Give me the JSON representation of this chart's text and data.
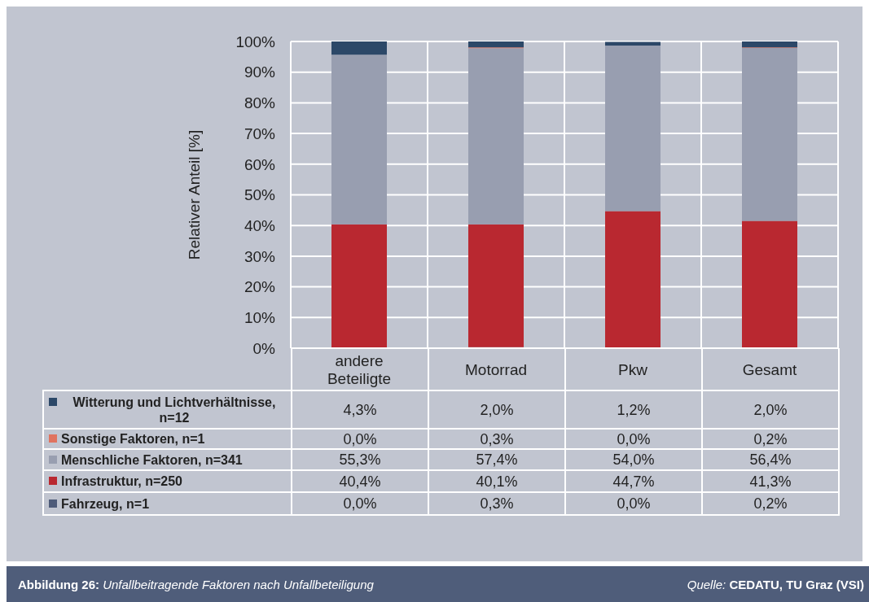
{
  "chart_data": {
    "type": "bar",
    "stacked": true,
    "title": "Abbildung 26: Unfallbeitragende Faktoren nach Unfallbeteiligung",
    "ylabel": "Relativer Anteil [%]",
    "categories": [
      "andere Beteiligte",
      "Motorrad",
      "Pkw",
      "Gesamt"
    ],
    "series": [
      {
        "name": "Fahrzeug, n=1",
        "color": "#4e5b79",
        "values": [
          0.0,
          0.3,
          0.0,
          0.2
        ],
        "value_labels": [
          "0,0%",
          "0,3%",
          "0,0%",
          "0,2%"
        ]
      },
      {
        "name": "Infrastruktur, n=250",
        "color": "#b92830",
        "values": [
          40.4,
          40.1,
          44.7,
          41.3
        ],
        "value_labels": [
          "40,4%",
          "40,1%",
          "44,7%",
          "41,3%"
        ]
      },
      {
        "name": "Menschliche Faktoren, n=341",
        "color": "#989eb0",
        "values": [
          55.3,
          57.4,
          54.0,
          56.4
        ],
        "value_labels": [
          "55,3%",
          "57,4%",
          "54,0%",
          "56,4%"
        ]
      },
      {
        "name": "Sonstige Faktoren, n=1",
        "color": "#e0735f",
        "values": [
          0.0,
          0.3,
          0.0,
          0.2
        ],
        "value_labels": [
          "0,0%",
          "0,3%",
          "0,0%",
          "0,2%"
        ]
      },
      {
        "name": "Witterung und Lichtverhältnisse, n=12",
        "color": "#2c4868",
        "values": [
          4.3,
          2.0,
          1.2,
          2.0
        ],
        "value_labels": [
          "4,3%",
          "2,0%",
          "1,2%",
          "2,0%"
        ]
      }
    ],
    "ylim": [
      0,
      100
    ],
    "yticks": [
      {
        "value": 0,
        "label": "0%"
      },
      {
        "value": 10,
        "label": "10%"
      },
      {
        "value": 20,
        "label": "20%"
      },
      {
        "value": 30,
        "label": "30%"
      },
      {
        "value": 40,
        "label": "40%"
      },
      {
        "value": 50,
        "label": "50%"
      },
      {
        "value": 60,
        "label": "60%"
      },
      {
        "value": 70,
        "label": "70%"
      },
      {
        "value": 80,
        "label": "80%"
      },
      {
        "value": 90,
        "label": "90%"
      },
      {
        "value": 100,
        "label": "100%"
      }
    ],
    "grid": true,
    "legend": "bottom",
    "annotations": [
      "Quelle: CEDATU, TU Graz (VSI)"
    ]
  }
}
